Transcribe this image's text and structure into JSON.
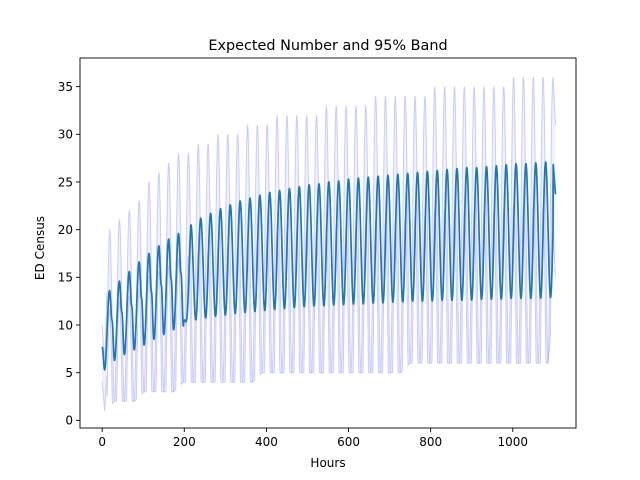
{
  "chart_data": {
    "type": "line",
    "title": "Expected Number and 95% Band",
    "xlabel": "Hours",
    "ylabel": "ED Census",
    "xlim": [
      -54,
      1154
    ],
    "ylim": [
      -0.8,
      38
    ],
    "xticks": [
      0,
      200,
      400,
      600,
      800,
      1000
    ],
    "yticks": [
      0,
      5,
      10,
      15,
      20,
      25,
      30,
      35
    ],
    "grid": false,
    "legend": "none",
    "cycle_period_hours": 24,
    "series": [
      {
        "role": "expected",
        "color": "#1f77b4",
        "x": [
          0,
          6,
          18,
          24,
          30,
          42,
          48,
          54,
          66,
          72,
          78,
          90,
          96,
          102,
          114,
          120,
          126,
          138,
          144,
          150,
          162,
          168,
          174,
          186,
          192,
          198,
          216,
          240,
          264,
          288,
          312,
          336,
          360,
          384,
          408,
          432,
          456,
          480,
          504,
          528,
          552,
          576,
          600,
          624,
          648,
          672,
          696,
          720,
          744,
          768,
          792,
          816,
          840,
          864,
          888,
          912,
          936,
          960,
          984,
          1008,
          1032,
          1056,
          1080,
          1098,
          1104
        ],
        "y": [
          7.7,
          5.3,
          13.6,
          10.5,
          6.3,
          14.6,
          11.3,
          6.9,
          15.6,
          12,
          7.4,
          16.6,
          12.8,
          7.9,
          17.5,
          13.5,
          8.5,
          18.3,
          14.2,
          9,
          19,
          14.8,
          9.5,
          19.6,
          15.4,
          9.9,
          20.5,
          21.2,
          21.7,
          22.2,
          22.6,
          23,
          23.3,
          23.6,
          23.9,
          24.1,
          24.3,
          24.5,
          24.7,
          24.8,
          25,
          25.1,
          25.3,
          25.4,
          25.5,
          25.6,
          25.7,
          25.8,
          25.9,
          26,
          26.1,
          26.2,
          26.3,
          26.4,
          26.5,
          26.5,
          26.6,
          26.7,
          26.8,
          26.9,
          26.9,
          27,
          27.1,
          27.1,
          23.7
        ],
        "troughs": [
          10.3,
          10.5,
          10.7,
          10.9,
          11,
          11.2,
          11.3,
          11.4,
          11.5,
          11.6,
          11.7,
          11.8,
          11.9,
          12,
          12,
          12.1,
          12.1,
          12.2,
          12.2,
          12.3,
          12.3,
          12.4,
          12.4,
          12.5,
          12.5,
          12.5,
          12.6,
          12.6,
          12.6,
          12.6,
          12.7,
          12.7,
          12.7,
          12.8,
          12.8,
          12.8,
          12.8,
          12.9,
          12.9,
          12.9
        ]
      },
      {
        "role": "band-upper",
        "color": "#0000ff",
        "x": [
          0,
          18,
          42,
          66,
          90,
          114,
          138,
          162,
          186,
          210,
          234,
          258,
          282,
          306,
          330,
          354,
          378,
          402,
          426,
          450,
          474,
          498,
          522,
          546,
          570,
          594,
          618,
          642,
          666,
          690,
          714,
          738,
          762,
          786,
          810,
          834,
          858,
          882,
          906,
          930,
          954,
          978,
          1002,
          1026,
          1050,
          1074,
          1098,
          1104
        ],
        "y": [
          10,
          20,
          21,
          22,
          23,
          25,
          26,
          27,
          28,
          28,
          29,
          29,
          30,
          30,
          30,
          31,
          31,
          31,
          32,
          32,
          32,
          32,
          32,
          33,
          33,
          33,
          33,
          33,
          34,
          34,
          34,
          34,
          34,
          34,
          35,
          35,
          35,
          35,
          35,
          35,
          35,
          35,
          36,
          36,
          36,
          36,
          36,
          31
        ]
      },
      {
        "role": "band-lower",
        "color": "#0000ff",
        "x": [
          0,
          6,
          30,
          54,
          78,
          102,
          126,
          150,
          174,
          198,
          222,
          246,
          270,
          294,
          318,
          342,
          366,
          390,
          414,
          438,
          462,
          486,
          510,
          534,
          558,
          582,
          606,
          630,
          654,
          678,
          702,
          726,
          750,
          774,
          798,
          822,
          846,
          870,
          894,
          918,
          942,
          966,
          990,
          1014,
          1038,
          1062,
          1086,
          1104
        ],
        "y": [
          4,
          1,
          2,
          2,
          2,
          3,
          3,
          3,
          3,
          4,
          4,
          4,
          4,
          4,
          4,
          4,
          4,
          5,
          5,
          5,
          5,
          5,
          5,
          5,
          5,
          5,
          5,
          5,
          5,
          5,
          5,
          5,
          6,
          6,
          6,
          6,
          6,
          6,
          6,
          6,
          6,
          6,
          6,
          6,
          6,
          6,
          6,
          15
        ]
      }
    ]
  }
}
